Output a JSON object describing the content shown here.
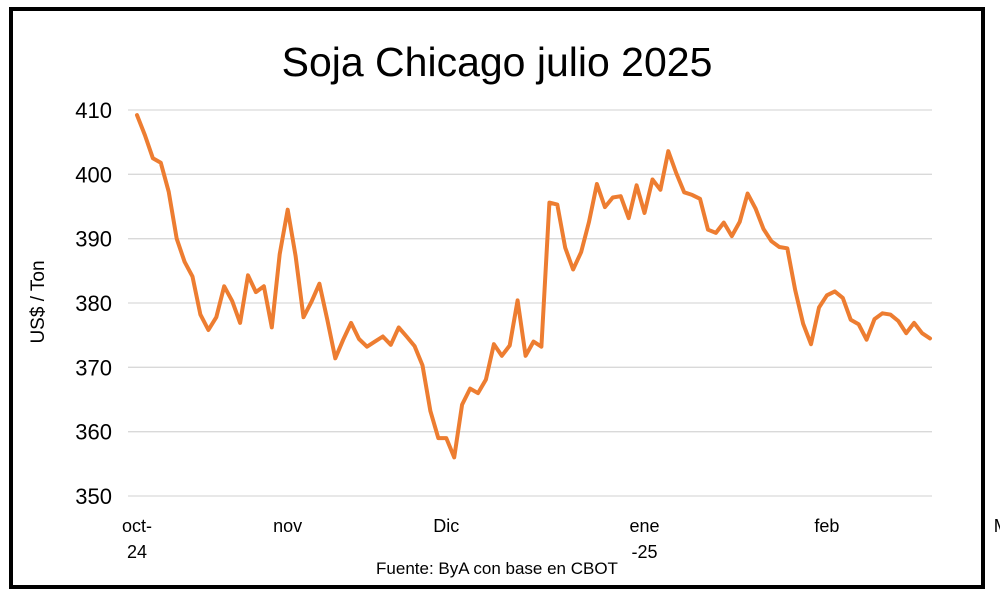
{
  "chart_data": {
    "type": "line",
    "title": "Soja Chicago julio 2025",
    "ylabel": "US$ / Ton",
    "xlabel": "",
    "source": "Fuente: ByA con base en CBOT",
    "ylim": [
      350,
      410
    ],
    "yticks": [
      350,
      360,
      370,
      380,
      390,
      400,
      410
    ],
    "grid": true,
    "legend": "none",
    "line_color": "#ED7D31",
    "x_tick_labels": [
      {
        "lines": [
          "oct-",
          "24"
        ],
        "index": 0
      },
      {
        "lines": [
          "nov"
        ],
        "index": 19
      },
      {
        "lines": [
          "Dic"
        ],
        "index": 39
      },
      {
        "lines": [
          "ene",
          "-25"
        ],
        "index": 64
      },
      {
        "lines": [
          "feb"
        ],
        "index": 87
      },
      {
        "lines": [
          "Mar"
        ],
        "index": 110
      }
    ],
    "series": [
      {
        "values": [
          409.2,
          406.1,
          402.5,
          401.8,
          397.3,
          390.0,
          386.4,
          384.1,
          378.2,
          375.8,
          377.8,
          382.6,
          380.3,
          376.9,
          384.3,
          381.7,
          382.6,
          376.2,
          387.6,
          394.5,
          387.3,
          377.8,
          380.2,
          383.0,
          377.4,
          371.4,
          374.3,
          376.9,
          374.4,
          373.2,
          374.0,
          374.8,
          373.5,
          376.2,
          374.8,
          373.3,
          370.3,
          363.2,
          359.0,
          359.0,
          356.0,
          364.2,
          366.7,
          366.0,
          368.1,
          373.6,
          371.8,
          373.4,
          380.4,
          371.8,
          374.0,
          373.2,
          395.6,
          395.3,
          388.6,
          385.2,
          387.9,
          392.6,
          398.5,
          394.9,
          396.4,
          396.6,
          393.2,
          398.3,
          394.0,
          399.2,
          397.6,
          403.6,
          400.2,
          397.2,
          396.8,
          396.2,
          391.4,
          390.9,
          392.5,
          390.4,
          392.6,
          397.0,
          394.7,
          391.5,
          389.6,
          388.7,
          388.5,
          382.0,
          376.8,
          373.6,
          379.3,
          381.2,
          381.8,
          380.8,
          377.4,
          376.7,
          374.3,
          377.5,
          378.4,
          378.2,
          377.2,
          375.3,
          376.9,
          375.3,
          374.5
        ]
      }
    ]
  }
}
